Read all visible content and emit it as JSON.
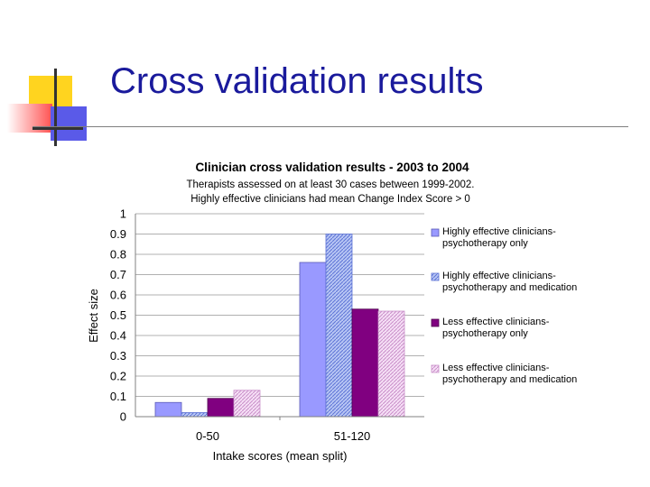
{
  "slide": {
    "title": "Cross validation results"
  },
  "colors": {
    "title": "#1a1a9c",
    "deco_yellow": "#ffd41f",
    "deco_red": "#ff5050",
    "deco_blue": "#5a5ae8",
    "deco_dark": "#333333"
  },
  "chart_data": {
    "type": "bar",
    "title": "Clinician cross validation results - 2003 to 2004",
    "subtitle_lines": [
      "Therapists assessed on at least 30 cases between 1999-2002.",
      "Highly effective clinicians had mean Change Index Score > 0"
    ],
    "xlabel": "Intake scores (mean split)",
    "ylabel": "Effect size",
    "ylim": [
      0,
      1
    ],
    "yticks": [
      "0",
      "0.1",
      "0.2",
      "0.3",
      "0.4",
      "0.5",
      "0.6",
      "0.7",
      "0.8",
      "0.9",
      "1"
    ],
    "categories": [
      "0-50",
      "51-120"
    ],
    "gridlines": "horizontal",
    "legend_position": "right",
    "series": [
      {
        "name": "Highly effective clinicians-psychotherapy only",
        "legend_lines": [
          "Highly effective clinicians-",
          "psychotherapy only"
        ],
        "values": [
          0.07,
          0.76
        ],
        "color": "#9999ff",
        "pattern": "solid"
      },
      {
        "name": "Highly effective clinicians-psychotherapy and medication",
        "legend_lines": [
          "Highly effective clinicians-",
          "psychotherapy and medication"
        ],
        "values": [
          0.02,
          0.9
        ],
        "color": "#7f92e0",
        "pattern": "hatched"
      },
      {
        "name": "Less effective clinicians-psychotherapy only",
        "legend_lines": [
          "Less effective clinicians-",
          "psychotherapy only"
        ],
        "values": [
          0.09,
          0.53
        ],
        "color": "#800080",
        "pattern": "solid"
      },
      {
        "name": "Less effective clinicians-psychotherapy and medication",
        "legend_lines": [
          "Less effective clinicians-",
          "psychotherapy and medication"
        ],
        "values": [
          0.13,
          0.52
        ],
        "color": "#e6b8e6",
        "pattern": "hatched"
      }
    ]
  }
}
